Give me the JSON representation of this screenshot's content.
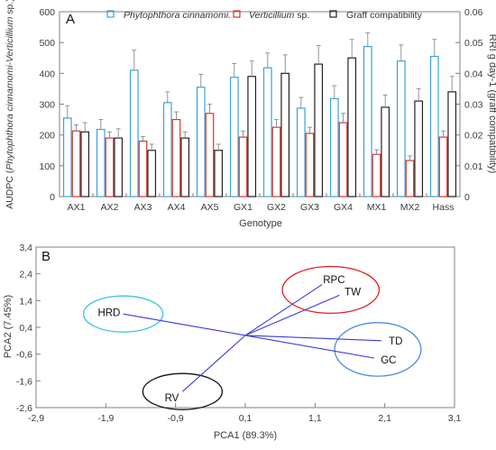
{
  "colors": {
    "phytophthora": "#3aa3d9",
    "verticillium": "#d9342b",
    "graft": "#222222",
    "error_bar": "#888888",
    "pca_line": "#3b3bd9",
    "axis": "#808080",
    "cluster_hrd": "#3ec3e0",
    "cluster_rpc_tw": "#e02020",
    "cluster_td_gc": "#4a8ed6",
    "cluster_rv": "#111111"
  },
  "chart_data": [
    {
      "type": "bar",
      "panel_letter": "A",
      "categories": [
        "AX1",
        "AX2",
        "AX3",
        "AX4",
        "AX5",
        "GX1",
        "GX2",
        "GX3",
        "GX4",
        "MX1",
        "MX2",
        "Hass"
      ],
      "xlabel": "Genotype",
      "ylabel_left": "AUDPC (Phytophthora cinnamomi-Verticillium sp.)",
      "ylabel_right": "RRI g day-1 (graff compatibility)",
      "ylim_left": [
        0,
        600
      ],
      "ylim_right": [
        0,
        0.06
      ],
      "yticks_left": [
        "0",
        "100",
        "200",
        "300",
        "400",
        "500",
        "600"
      ],
      "yticks_right": [
        "0",
        "0.01",
        "0.02",
        "0.03",
        "0.04",
        "0.05",
        "0.06"
      ],
      "legend_position": "top",
      "series": [
        {
          "name": "Phytophthora cinnamomi.",
          "axis": "left",
          "values": [
            255,
            218,
            410,
            305,
            355,
            387,
            418,
            287,
            318,
            487,
            440,
            455
          ],
          "errors": [
            40,
            32,
            65,
            35,
            42,
            45,
            48,
            35,
            42,
            45,
            52,
            55
          ]
        },
        {
          "name": "Verticillium sp.",
          "axis": "left",
          "values": [
            213,
            190,
            180,
            250,
            270,
            193,
            225,
            205,
            240,
            137,
            117,
            193
          ],
          "errors": [
            20,
            20,
            15,
            25,
            30,
            20,
            25,
            20,
            30,
            15,
            15,
            20
          ]
        },
        {
          "name": "Graff compatibility",
          "axis": "right",
          "values": [
            0.021,
            0.019,
            0.015,
            0.019,
            0.015,
            0.039,
            0.04,
            0.043,
            0.045,
            0.029,
            0.031,
            0.034
          ],
          "errors": [
            0.003,
            0.003,
            0.002,
            0.002,
            0.002,
            0.005,
            0.006,
            0.006,
            0.006,
            0.004,
            0.004,
            0.005
          ]
        }
      ]
    },
    {
      "type": "scatter",
      "subtype": "pca-biplot",
      "panel_letter": "B",
      "xlabel": "PCA1 (89.3%)",
      "ylabel": "PCA2 (7.45%)",
      "xlim": [
        -2.9,
        3.1
      ],
      "ylim": [
        -2.6,
        3.4
      ],
      "xticks": [
        "-2,9",
        "-1,9",
        "-0,9",
        "0,1",
        "1,1",
        "2,1",
        "3,1"
      ],
      "yticks": [
        "3,4",
        "2,4",
        "1,4",
        "0,4",
        "-0,6",
        "-1,6",
        "-2,6"
      ],
      "origin": [
        0.1,
        0.1
      ],
      "vectors": [
        {
          "label": "HRD",
          "x": -1.65,
          "y": 0.9
        },
        {
          "label": "RPC",
          "x": 1.2,
          "y": 2.0
        },
        {
          "label": "TW",
          "x": 1.45,
          "y": 1.6
        },
        {
          "label": "TD",
          "x": 2.05,
          "y": -0.1
        },
        {
          "label": "GC",
          "x": 1.95,
          "y": -0.75
        },
        {
          "label": "RV",
          "x": -0.8,
          "y": -2.0
        }
      ],
      "clusters": [
        {
          "members": [
            "HRD"
          ],
          "color_key": "cluster_hrd"
        },
        {
          "members": [
            "RPC",
            "TW"
          ],
          "color_key": "cluster_rpc_tw"
        },
        {
          "members": [
            "TD",
            "GC"
          ],
          "color_key": "cluster_td_gc"
        },
        {
          "members": [
            "RV"
          ],
          "color_key": "cluster_rv"
        }
      ]
    }
  ]
}
